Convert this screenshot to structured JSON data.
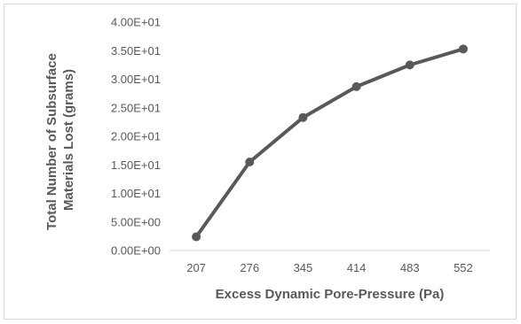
{
  "chart_data": {
    "type": "line",
    "title": "",
    "xlabel": "Excess Dynamic Pore-Pressure (Pa)",
    "ylabel_lines": [
      "Total Number of Subsurface",
      "Materials Lost (grams)"
    ],
    "categories": [
      "207",
      "276",
      "345",
      "414",
      "483",
      "552"
    ],
    "series": [
      {
        "values": [
          2.4,
          15.5,
          23.3,
          28.7,
          32.5,
          35.3
        ]
      }
    ],
    "ylim": [
      0,
      40
    ],
    "yticks": [
      0,
      5,
      10,
      15,
      20,
      25,
      30,
      35,
      40
    ],
    "ytick_labels": [
      "0.00E+00",
      "5.00E+00",
      "1.00E+01",
      "1.50E+01",
      "2.00E+01",
      "2.50E+01",
      "3.00E+01",
      "3.50E+01",
      "4.00E+01"
    ],
    "grid": false,
    "legend": "none",
    "colors": {
      "line": "#595959",
      "marker": "#595959",
      "axis": "#d9d9d9",
      "text": "#595959"
    }
  }
}
